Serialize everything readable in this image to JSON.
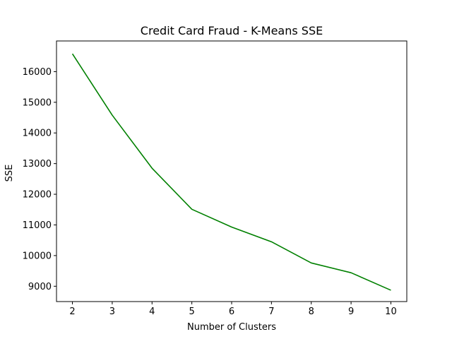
{
  "chart_data": {
    "type": "line",
    "title": "Credit Card Fraud - K-Means SSE",
    "xlabel": "Number of Clusters",
    "ylabel": "SSE",
    "xlim": [
      1.6,
      10.4
    ],
    "ylim": [
      8500,
      17000
    ],
    "xticks": [
      2,
      3,
      4,
      5,
      6,
      7,
      8,
      9,
      10
    ],
    "yticks": [
      9000,
      10000,
      11000,
      12000,
      13000,
      14000,
      15000,
      16000
    ],
    "grid": false,
    "series": [
      {
        "color": "#008000",
        "x": [
          2,
          3,
          4,
          5,
          6,
          7,
          8,
          9,
          10
        ],
        "y": [
          16580,
          14580,
          12850,
          11510,
          10930,
          10450,
          9760,
          9440,
          8870
        ]
      }
    ]
  }
}
